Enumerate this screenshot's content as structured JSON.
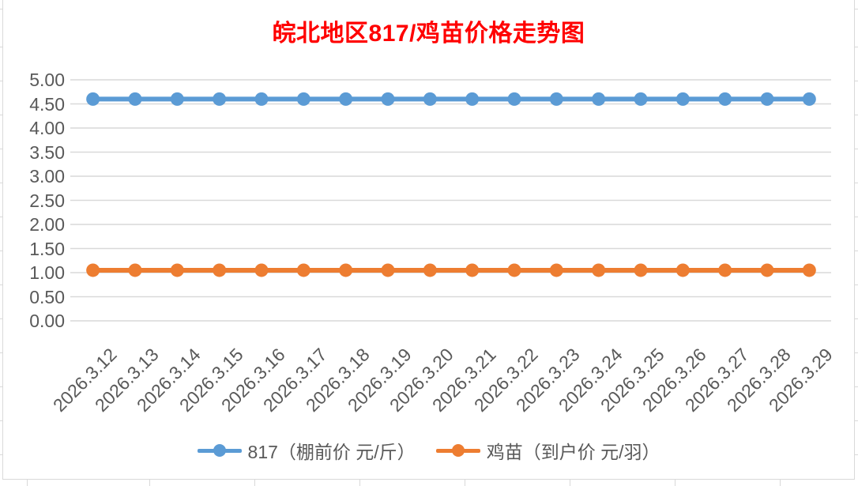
{
  "chart_data": {
    "type": "line",
    "title": "皖北地区817/鸡苗价格走势图",
    "title_color": "#FF0000",
    "categories": [
      "2026.3.12",
      "2026.3.13",
      "2026.3.14",
      "2026.3.15",
      "2026.3.16",
      "2026.3.17",
      "2026.3.18",
      "2026.3.19",
      "2026.3.20",
      "2026.3.21",
      "2026.3.22",
      "2026.3.23",
      "2026.3.24",
      "2026.3.25",
      "2026.3.26",
      "2026.3.27",
      "2026.3.28",
      "2026.3.29"
    ],
    "series": [
      {
        "name": "817（棚前价 元/斤）",
        "color": "#5B9BD5",
        "values": [
          4.6,
          4.6,
          4.6,
          4.6,
          4.6,
          4.6,
          4.6,
          4.6,
          4.6,
          4.6,
          4.6,
          4.6,
          4.6,
          4.6,
          4.6,
          4.6,
          4.6,
          4.6
        ]
      },
      {
        "name": "鸡苗（到户价 元/羽）",
        "color": "#ED7D31",
        "values": [
          1.05,
          1.05,
          1.05,
          1.05,
          1.05,
          1.05,
          1.05,
          1.05,
          1.05,
          1.05,
          1.05,
          1.05,
          1.05,
          1.05,
          1.05,
          1.05,
          1.05,
          1.05
        ]
      }
    ],
    "ylim": [
      0,
      5
    ],
    "ytick_step": 0.5,
    "ytick_labels": [
      "5.00",
      "4.50",
      "4.00",
      "3.50",
      "3.00",
      "2.50",
      "2.00",
      "1.50",
      "1.00",
      "0.50",
      "0.00"
    ],
    "grid": true,
    "legend_position": "bottom",
    "axis_text_color": "#595959",
    "gridline_color": "#D9D9D9"
  }
}
